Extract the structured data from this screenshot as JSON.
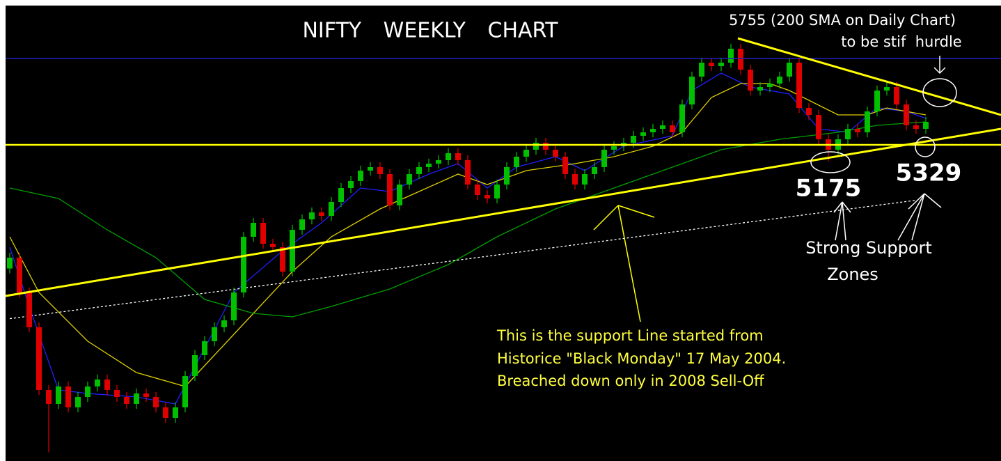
{
  "chart_data": {
    "type": "candlestick",
    "title": "NIFTY WEEKLY CHART",
    "ylim": [
      2165,
      6799
    ],
    "up_color": "#00c000",
    "down_color": "#e00000",
    "open": [
      4100,
      4209,
      3859,
      3509,
      2879,
      2739,
      2914,
      2704,
      2809,
      2914,
      2984,
      2879,
      2809,
      2739,
      2844,
      2809,
      2704,
      2599,
      2704,
      3019,
      3229,
      3369,
      3509,
      3579,
      3859,
      4419,
      4559,
      4349,
      4314,
      4069,
      4489,
      4594,
      4664,
      4629,
      4769,
      4909,
      4979,
      5084,
      5119,
      5049,
      4734,
      4944,
      5049,
      5119,
      5154,
      5189,
      5259,
      5189,
      4944,
      4839,
      4804,
      4944,
      5119,
      5224,
      5294,
      5364,
      5294,
      5224,
      5049,
      4944,
      5049,
      5119,
      5294,
      5329,
      5364,
      5434,
      5469,
      5504,
      5539,
      5469,
      5749,
      6029,
      6169,
      6134,
      6169,
      6309,
      6099,
      5889,
      5924,
      5959,
      6029,
      6169,
      5714,
      5644,
      5399,
      5294,
      5399,
      5504,
      5469,
      5679,
      5889,
      5924,
      5749,
      5539,
      5504
    ],
    "high": [
      4259,
      4259,
      3909,
      3559,
      2929,
      2964,
      2964,
      2859,
      2964,
      3034,
      3034,
      2929,
      2859,
      2894,
      2894,
      2859,
      2754,
      2754,
      3069,
      3279,
      3419,
      3559,
      3629,
      3909,
      4469,
      4609,
      4609,
      4399,
      4364,
      4539,
      4644,
      4714,
      4714,
      4819,
      4959,
      5029,
      5134,
      5169,
      5169,
      5099,
      4994,
      5099,
      5169,
      5204,
      5239,
      5309,
      5309,
      5239,
      4994,
      4889,
      4994,
      5169,
      5274,
      5344,
      5414,
      5414,
      5344,
      5274,
      5099,
      5099,
      5169,
      5344,
      5379,
      5414,
      5484,
      5519,
      5554,
      5589,
      5589,
      5799,
      6079,
      6219,
      6219,
      6219,
      6359,
      6359,
      6149,
      5974,
      6009,
      6079,
      6219,
      6219,
      5764,
      5694,
      5449,
      5449,
      5554,
      5554,
      5729,
      5939,
      5974,
      5974,
      5799,
      5589,
      5624
    ],
    "low": [
      4050,
      3809,
      3459,
      2829,
      2252,
      2689,
      2654,
      2654,
      2759,
      2864,
      2829,
      2759,
      2689,
      2689,
      2759,
      2654,
      2549,
      2549,
      2654,
      2969,
      3179,
      3319,
      3459,
      3529,
      3809,
      4369,
      4299,
      4264,
      4019,
      4019,
      4439,
      4544,
      4579,
      4579,
      4719,
      4859,
      4929,
      5034,
      4999,
      4684,
      4684,
      4894,
      4999,
      5069,
      5104,
      5139,
      5139,
      4894,
      4789,
      4754,
      4754,
      4894,
      5069,
      5174,
      5244,
      5244,
      5174,
      4999,
      4894,
      4894,
      4999,
      5069,
      5244,
      5279,
      5314,
      5384,
      5419,
      5454,
      5419,
      5419,
      5699,
      5979,
      6084,
      6084,
      6119,
      6049,
      5839,
      5839,
      5874,
      5909,
      5979,
      5664,
      5594,
      5349,
      5175,
      5244,
      5349,
      5419,
      5419,
      5629,
      5839,
      5699,
      5489,
      5454,
      5454
    ],
    "close": [
      4209,
      3859,
      3509,
      2879,
      2739,
      2914,
      2704,
      2809,
      2914,
      2984,
      2879,
      2809,
      2739,
      2844,
      2809,
      2704,
      2599,
      2704,
      3019,
      3229,
      3369,
      3509,
      3579,
      3859,
      4419,
      4559,
      4349,
      4314,
      4069,
      4489,
      4594,
      4664,
      4629,
      4769,
      4909,
      4979,
      5084,
      5119,
      5049,
      4734,
      4944,
      5049,
      5119,
      5154,
      5189,
      5259,
      5189,
      4944,
      4839,
      4804,
      4944,
      5119,
      5224,
      5294,
      5364,
      5294,
      5224,
      5049,
      4944,
      5049,
      5119,
      5294,
      5329,
      5364,
      5434,
      5469,
      5504,
      5539,
      5469,
      5749,
      6029,
      6169,
      6134,
      6169,
      6309,
      6099,
      5889,
      5924,
      5959,
      6029,
      6169,
      5714,
      5644,
      5399,
      5294,
      5399,
      5504,
      5469,
      5679,
      5889,
      5924,
      5749,
      5539,
      5504,
      5574
    ],
    "overlays": [
      {
        "color": "#2020ff",
        "x": [
          0,
          2,
          5,
          8,
          13,
          17,
          20,
          23,
          28,
          32,
          36,
          39,
          43,
          46,
          49,
          52,
          56,
          59,
          63,
          68,
          70,
          73,
          76,
          80,
          83,
          86,
          89,
          92,
          94
        ],
        "values": [
          4314,
          3719,
          2879,
          2844,
          2809,
          2739,
          3299,
          3859,
          4279,
          4559,
          4909,
          4874,
          5049,
          5154,
          4909,
          5119,
          5224,
          5084,
          5329,
          5434,
          5889,
          6064,
          5924,
          5854,
          5504,
          5469,
          5714,
          5679,
          5609
        ]
      },
      {
        "color": "#e0d000",
        "x": [
          0,
          3,
          8,
          13,
          18,
          21,
          25,
          29,
          33,
          38,
          42,
          46,
          49,
          53,
          58,
          62,
          66,
          69,
          72,
          75,
          78,
          80,
          85,
          88,
          90,
          94
        ],
        "values": [
          4419,
          3859,
          3369,
          3054,
          2914,
          3229,
          3649,
          4069,
          4419,
          4699,
          4874,
          5049,
          4944,
          5084,
          5154,
          5224,
          5329,
          5469,
          5819,
          5959,
          5959,
          5889,
          5644,
          5644,
          5714,
          5644
        ]
      },
      {
        "color": "#00a000",
        "x": [
          0,
          5,
          10,
          15,
          20,
          25,
          29,
          33,
          39,
          45,
          50,
          56,
          62,
          68,
          73,
          79,
          85,
          89,
          94
        ],
        "values": [
          4909,
          4804,
          4489,
          4209,
          3789,
          3649,
          3614,
          3719,
          3894,
          4139,
          4419,
          4699,
          4909,
          5119,
          5294,
          5399,
          5469,
          5539,
          5574
        ]
      },
      {
        "color": "#ffffff",
        "dashed": true,
        "x": [
          0,
          93
        ],
        "values": [
          3596,
          4786
        ]
      }
    ],
    "annotations": {
      "hurdle_1": "5755 (200 SMA on Daily Chart)",
      "hurdle_2": "to be stif  hurdle",
      "level_1": "5175",
      "level_2": "5329",
      "support_1": "Strong Support",
      "support_2": "Zones",
      "note_1": "This is the support Line started from",
      "note_2": "Historice \"Black Monday\" 17 May 2004.",
      "note_3": "Breached down only in 2008 Sell-Off"
    }
  }
}
